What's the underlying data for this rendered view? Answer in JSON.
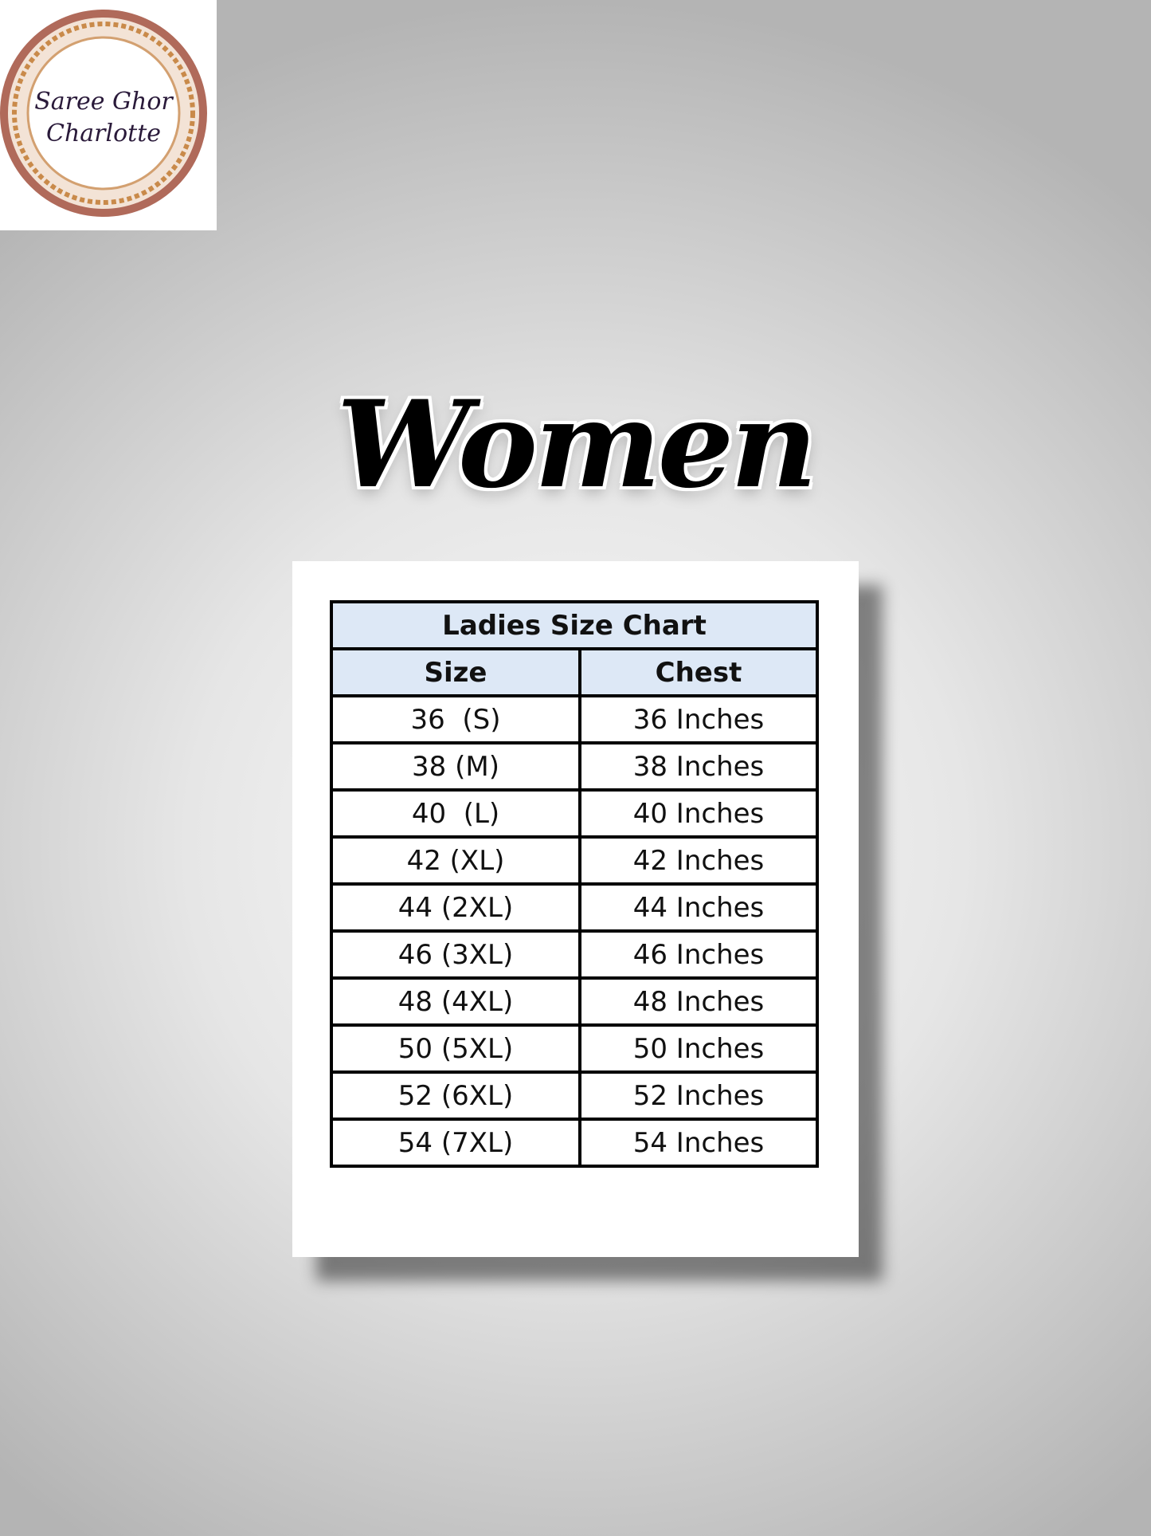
{
  "logo": {
    "line1": "Saree Ghor",
    "line2": "Charlotte"
  },
  "heading": "Women",
  "table": {
    "title": "Ladies Size Chart",
    "headers": [
      "Size",
      "Chest"
    ],
    "rows": [
      [
        "36  (S)",
        "36 Inches"
      ],
      [
        "38 (M)",
        "38 Inches"
      ],
      [
        "40  (L)",
        "40 Inches"
      ],
      [
        "42 (XL)",
        "42 Inches"
      ],
      [
        "44 (2XL)",
        "44 Inches"
      ],
      [
        "46 (3XL)",
        "46 Inches"
      ],
      [
        "48 (4XL)",
        "48 Inches"
      ],
      [
        "50 (5XL)",
        "50 Inches"
      ],
      [
        "52 (6XL)",
        "52 Inches"
      ],
      [
        "54 (7XL)",
        "54 Inches"
      ]
    ]
  }
}
